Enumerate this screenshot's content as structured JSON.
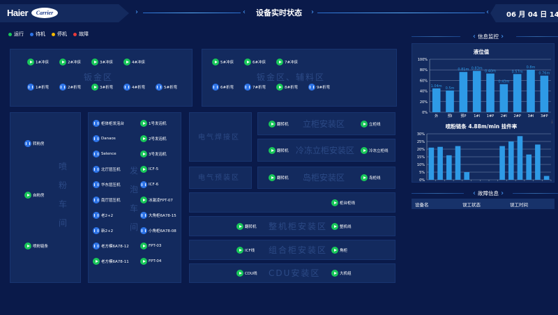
{
  "header": {
    "logo": "Haier",
    "brand2": "Carrier",
    "title": "设备实时状态",
    "date": "06 月 04 日 14:14"
  },
  "legend": [
    {
      "label": "运行",
      "color": "#19c75a"
    },
    {
      "label": "待机",
      "color": "#2e74e8"
    },
    {
      "label": "停机",
      "color": "#f5b800"
    },
    {
      "label": "故障",
      "color": "#e83a3a"
    }
  ],
  "zones": {
    "sheet_metal": {
      "watermark": "钣金区",
      "items": [
        {
          "label": "1#冲床",
          "status": "run"
        },
        {
          "label": "2#冲床",
          "status": "run"
        },
        {
          "label": "3#冲床",
          "status": "run"
        },
        {
          "label": "4#冲床",
          "status": "run"
        },
        {
          "label": "1#折弯",
          "status": "wait"
        },
        {
          "label": "2#折弯",
          "status": "wait"
        },
        {
          "label": "3#折弯",
          "status": "run"
        },
        {
          "label": "4#折弯",
          "status": "wait"
        },
        {
          "label": "5#折弯",
          "status": "wait"
        }
      ]
    },
    "sheet_aux": {
      "watermark": "钣金区、辅料区",
      "items": [
        {
          "label": "5#冲床",
          "status": "run"
        },
        {
          "label": "6#冲床",
          "status": "run"
        },
        {
          "label": "7#冲床",
          "status": "run"
        },
        {
          "label": "6#折弯",
          "status": "wait"
        },
        {
          "label": "7#折弯",
          "status": "wait"
        },
        {
          "label": "8#折弯",
          "status": "run"
        },
        {
          "label": "9#折弯",
          "status": "wait"
        }
      ]
    },
    "spray": {
      "watermark": [
        "喷",
        "粉",
        "车",
        "间"
      ],
      "items": [
        {
          "label": "转粉房",
          "status": "wait"
        },
        {
          "label": "自粉房",
          "status": "run"
        },
        {
          "label": "喷粉链条",
          "status": "run"
        }
      ]
    },
    "foam": {
      "watermark": [
        "发",
        "泡",
        "车",
        "间"
      ],
      "items": [
        {
          "label": "柜体柜发泡台",
          "status": "wait"
        },
        {
          "label": "1号发泡机",
          "status": "run"
        },
        {
          "label": "Danaos",
          "status": "wait"
        },
        {
          "label": "2号发泡机",
          "status": "run"
        },
        {
          "label": "Selence",
          "status": "wait"
        },
        {
          "label": "3号发泡机",
          "status": "run"
        },
        {
          "label": "北厅层压机",
          "status": "wait"
        },
        {
          "label": "ICF-5",
          "status": "run"
        },
        {
          "label": "华东层压机",
          "status": "wait"
        },
        {
          "label": "ICF-6",
          "status": "wait"
        },
        {
          "label": "南厅层压机",
          "status": "wait"
        },
        {
          "label": "冰激凌FPT-07",
          "status": "run"
        },
        {
          "label": "老2+2",
          "status": "wait"
        },
        {
          "label": "大角柜6A78-15",
          "status": "wait"
        },
        {
          "label": "新2+2",
          "status": "wait"
        },
        {
          "label": "小角柜6A78-08",
          "status": "wait"
        },
        {
          "label": "老方模6A78-12",
          "status": "wait"
        },
        {
          "label": "FPT-03",
          "status": "run"
        },
        {
          "label": "老方模6A78-11",
          "status": "run"
        },
        {
          "label": "FPT-04",
          "status": "run"
        }
      ]
    },
    "weld": {
      "watermark": "电气焊接区"
    },
    "preinstall": {
      "watermark": "电气预装区"
    },
    "rows": [
      {
        "watermark": "立柜安装区",
        "items": [
          {
            "label": "翻转机",
            "status": "run"
          },
          {
            "label": "立柜线",
            "status": "run"
          }
        ]
      },
      {
        "watermark": "冷冻立柜安装区",
        "items": [
          {
            "label": "翻转机",
            "status": "run"
          },
          {
            "label": "冷冻立柜线",
            "status": "run"
          }
        ]
      },
      {
        "watermark": "岛柜安装区",
        "items": [
          {
            "label": "翻转机",
            "status": "run"
          },
          {
            "label": "岛柜线",
            "status": "run"
          }
        ]
      },
      {
        "watermark": "",
        "items": [
          {
            "label": "柜台柜线",
            "status": "run"
          }
        ]
      },
      {
        "watermark": "整机柜安装区",
        "items": [
          {
            "label": "翻转机",
            "status": "run"
          },
          {
            "label": "整机线",
            "status": "run"
          }
        ]
      },
      {
        "watermark": "组合柜安装区",
        "items": [
          {
            "label": "ICF线",
            "status": "run"
          },
          {
            "label": "角柜",
            "status": "run"
          }
        ]
      },
      {
        "watermark": "CDU安装区",
        "items": [
          {
            "label": "CDU线",
            "status": "run"
          },
          {
            "label": "大机组",
            "status": "run"
          }
        ]
      }
    ]
  },
  "monitor": {
    "title": "信息监控"
  },
  "fault": {
    "title": "故障信息",
    "columns": [
      "设备名",
      "误工状态",
      "误工时间"
    ]
  },
  "chart_data": [
    {
      "type": "bar",
      "title": "液位值",
      "categories": [
        "外",
        "预I",
        "预P",
        "1#I",
        "1#P",
        "2#I",
        "2#P",
        "3#I",
        "3#P"
      ],
      "values": [
        45,
        41,
        76,
        78,
        73,
        53,
        72,
        80,
        69
      ],
      "data_labels": [
        "1.04m",
        "0.5m",
        "0.81m",
        "0.83m",
        "0.40m",
        "0.43m",
        "0.57m",
        "0.8m",
        "0.76m"
      ],
      "ylim": [
        0,
        100
      ],
      "yticks": [
        "0%",
        "20%",
        "40%",
        "60%",
        "80%",
        "100%"
      ],
      "grid": true,
      "color": "#2e9ae6"
    },
    {
      "type": "bar",
      "title": "喷粉链条 4.88m/min 挂件率",
      "values": [
        21,
        21.5,
        16,
        22,
        5,
        0,
        0,
        0,
        22,
        25,
        28.5,
        16.5,
        23,
        2.5
      ],
      "ylim": [
        0,
        30
      ],
      "yticks": [
        "0%",
        "5%",
        "10%",
        "15%",
        "20%",
        "25%",
        "30%"
      ],
      "grid": true,
      "color": "#2e9ae6"
    }
  ]
}
